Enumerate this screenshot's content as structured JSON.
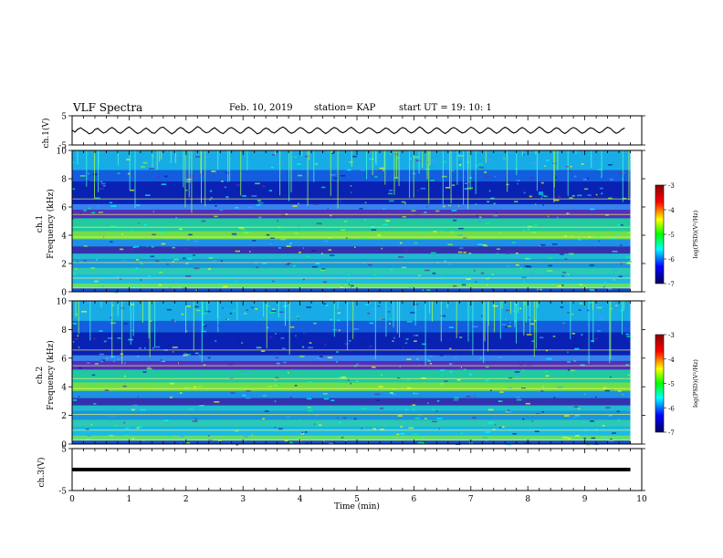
{
  "header": {
    "title": "VLF Spectra",
    "date": "Feb. 10, 2019",
    "station": "station= KAP",
    "start": "start  UT =   19: 10: 1"
  },
  "colorbar": {
    "label": "log(PSD)(V²/Hz)",
    "ticks": [
      "-3",
      "-4",
      "-5",
      "-6",
      "-7"
    ],
    "colors": [
      "#8b0000",
      "#ff0000",
      "#ffff00",
      "#00ff00",
      "#00ffff",
      "#0000ff",
      "#000060"
    ]
  },
  "chart_data": [
    {
      "type": "line",
      "name": "ch.1(V)",
      "ylabel": "ch.1(V)",
      "ylim": [
        -5,
        5
      ],
      "yticks": [
        "5",
        "-5"
      ],
      "xlim": [
        0,
        10
      ],
      "x_step_min": 0.05,
      "y": [
        0.1,
        -0.6,
        0.4,
        0.9,
        0.2,
        -0.4,
        -1.2,
        -0.8,
        0.3,
        0.7,
        -0.2,
        -0.9,
        -0.5,
        0.5,
        1.0,
        0.4,
        -0.6,
        -1.0,
        -0.3,
        0.6,
        1.2,
        0.5,
        -0.4,
        -1.1,
        -0.7,
        0.2,
        0.8,
        0.1,
        -0.8,
        -1.0,
        0.0,
        0.9,
        1.1,
        0.3,
        -0.5,
        -1.2,
        -0.6,
        0.4,
        1.0,
        0.6,
        -0.3,
        -0.9,
        -0.4,
        0.5,
        1.3,
        0.8,
        -0.2,
        -0.8,
        -0.6,
        0.3,
        0.9,
        0.2,
        -0.7,
        -1.1,
        -0.3,
        0.7,
        1.0,
        0.4,
        -0.4,
        -1.0,
        -0.5,
        0.6,
        1.1,
        0.5,
        -0.3,
        -1.2,
        -0.8,
        0.2,
        0.8,
        0.4,
        -0.5,
        -0.9,
        -0.2,
        0.7,
        1.2,
        0.6,
        -0.4,
        -1.0,
        -0.6,
        0.3,
        1.0,
        0.7,
        -0.2,
        -0.9,
        -0.7,
        0.2,
        0.9,
        0.5,
        -0.4,
        -1.1,
        -0.5,
        0.4,
        1.0,
        0.6,
        -0.3,
        -0.8,
        -0.4,
        0.5,
        1.1,
        0.4,
        -0.5,
        -1.0,
        -0.6,
        0.3,
        0.9,
        0.6,
        -0.2,
        -0.9,
        -0.7,
        0.1,
        0.8,
        0.5,
        -0.4,
        -1.1,
        -0.6,
        0.4,
        1.0,
        0.7,
        -0.3,
        -0.9,
        -0.5,
        0.4,
        1.2,
        0.6,
        -0.4,
        -1.0,
        -0.6,
        0.3,
        0.9,
        0.4,
        -0.5,
        -1.1,
        -0.4,
        0.6,
        1.0,
        0.5,
        -0.3,
        -0.9,
        -0.6,
        0.3,
        1.1,
        0.7,
        -0.2,
        -1.0,
        -0.7,
        0.2,
        0.9,
        0.5,
        -0.4,
        -1.0,
        -0.5,
        0.5,
        1.1,
        0.6,
        -0.3,
        -0.9,
        -0.6,
        0.4,
        1.0,
        0.5,
        -0.4,
        -1.0,
        -0.5,
        0.4,
        1.2,
        0.6,
        -0.3,
        -0.9,
        -0.6,
        0.3,
        0.9,
        0.5,
        -0.5,
        -1.1,
        -0.4,
        0.5,
        1.0,
        0.6,
        -0.3,
        -1.0,
        -0.6,
        0.3,
        0.9,
        0.6,
        -0.2,
        -0.8,
        -0.5,
        0.4,
        1.1,
        0.7,
        -0.3,
        -1.0,
        -0.6,
        0.3,
        0.8
      ]
    },
    {
      "type": "heatmap",
      "name": "ch.1",
      "ylabel": "Frequency (kHz)",
      "ylim": [
        0,
        10
      ],
      "yticks": [
        "0",
        "2",
        "4",
        "6",
        "8",
        "10"
      ],
      "xlim": [
        0,
        9.8
      ]
    },
    {
      "type": "heatmap",
      "name": "ch.2",
      "ylabel": "Frequency (kHz)",
      "ylim": [
        0,
        10
      ],
      "yticks": [
        "0",
        "2",
        "4",
        "6",
        "8",
        "10"
      ],
      "xlim": [
        0,
        9.8
      ]
    },
    {
      "type": "line",
      "name": "ch.3(V)",
      "ylabel": "ch.3(V)",
      "ylim": [
        -5,
        5
      ],
      "yticks": [
        "5",
        "-5"
      ],
      "xlim": [
        0,
        9.8
      ],
      "constant_value": 0,
      "xlabel": "Time (min)",
      "xticks": [
        "0",
        "1",
        "2",
        "3",
        "4",
        "5",
        "6",
        "7",
        "8",
        "9",
        "10"
      ]
    }
  ]
}
